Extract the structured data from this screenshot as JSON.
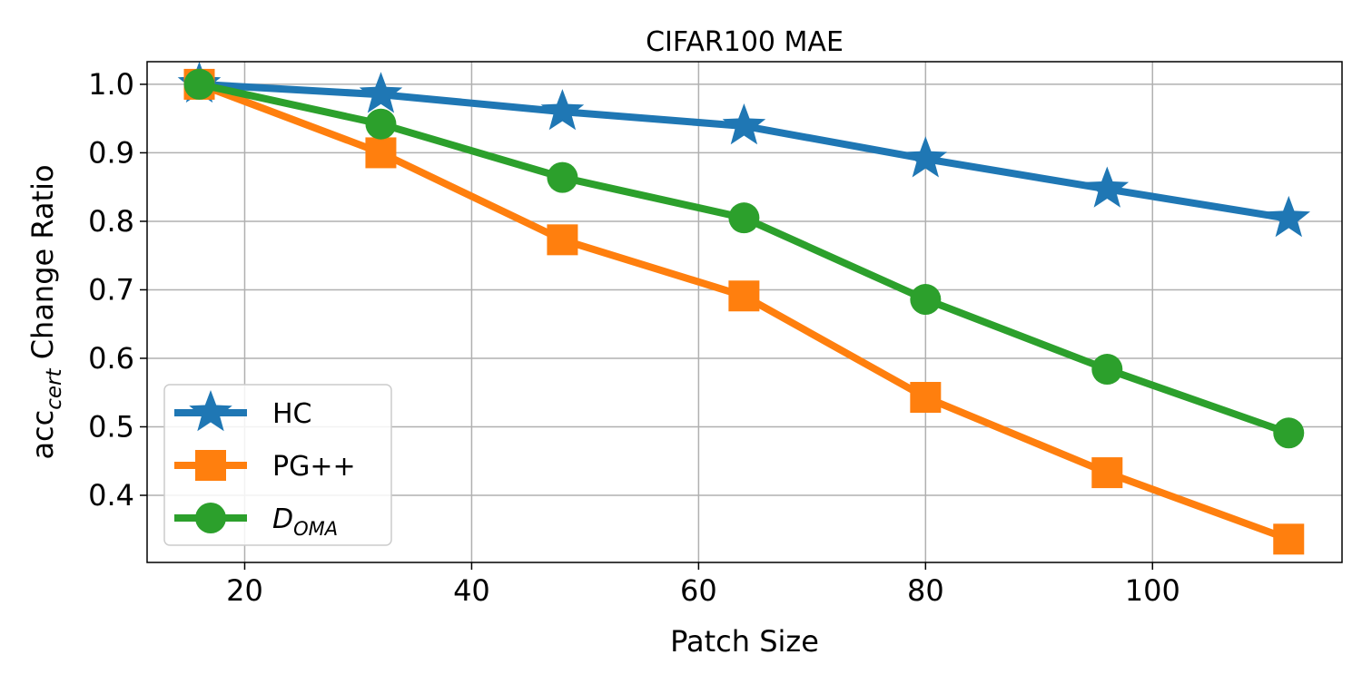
{
  "chart_data": {
    "type": "line",
    "title": "CIFAR100 MAE",
    "xlabel": "Patch Size",
    "ylabel_main": "acc",
    "ylabel_sub": "cert",
    "ylabel_rest": " Change Ratio",
    "xlim": [
      11.4,
      116.7
    ],
    "ylim": [
      0.302,
      1.033
    ],
    "xticks": [
      20,
      40,
      60,
      80,
      100
    ],
    "xtick_labels": [
      "20",
      "40",
      "60",
      "80",
      "100"
    ],
    "yticks": [
      0.4,
      0.5,
      0.6,
      0.7,
      0.8,
      0.9,
      1.0
    ],
    "ytick_labels": [
      "0.4",
      "0.5",
      "0.6",
      "0.7",
      "0.8",
      "0.9",
      "1.0"
    ],
    "grid": true,
    "legend_position": "lower-left",
    "x": [
      16,
      32,
      48,
      64,
      80,
      96,
      112
    ],
    "series": [
      {
        "name": "HC",
        "label_main": "HC",
        "label_sub": "",
        "marker": "star",
        "color": "#1f77b4",
        "values": [
          1.0,
          0.985,
          0.96,
          0.939,
          0.891,
          0.847,
          0.804
        ]
      },
      {
        "name": "PG++",
        "label_main": "PG++",
        "label_sub": "",
        "marker": "square",
        "color": "#ff7f0e",
        "values": [
          1.0,
          0.9,
          0.773,
          0.691,
          0.543,
          0.433,
          0.336
        ]
      },
      {
        "name": "D_OMA",
        "label_main": "D",
        "label_sub": "OMA",
        "marker": "circle",
        "color": "#2ca02c",
        "values": [
          1.0,
          0.942,
          0.864,
          0.805,
          0.686,
          0.584,
          0.491
        ]
      }
    ]
  }
}
